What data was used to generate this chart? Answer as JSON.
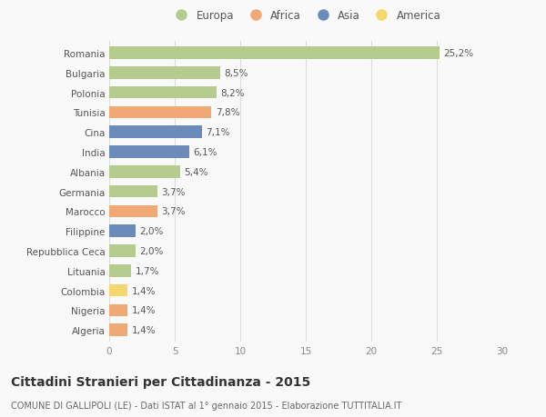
{
  "categories": [
    "Romania",
    "Bulgaria",
    "Polonia",
    "Tunisia",
    "Cina",
    "India",
    "Albania",
    "Germania",
    "Marocco",
    "Filippine",
    "Repubblica Ceca",
    "Lituania",
    "Colombia",
    "Nigeria",
    "Algeria"
  ],
  "values": [
    25.2,
    8.5,
    8.2,
    7.8,
    7.1,
    6.1,
    5.4,
    3.7,
    3.7,
    2.0,
    2.0,
    1.7,
    1.4,
    1.4,
    1.4
  ],
  "labels": [
    "25,2%",
    "8,5%",
    "8,2%",
    "7,8%",
    "7,1%",
    "6,1%",
    "5,4%",
    "3,7%",
    "3,7%",
    "2,0%",
    "2,0%",
    "1,7%",
    "1,4%",
    "1,4%",
    "1,4%"
  ],
  "continents": [
    "Europa",
    "Europa",
    "Europa",
    "Africa",
    "Asia",
    "Asia",
    "Europa",
    "Europa",
    "Africa",
    "Asia",
    "Europa",
    "Europa",
    "America",
    "Africa",
    "Africa"
  ],
  "continent_colors": {
    "Europa": "#b5cc8e",
    "Africa": "#f0a875",
    "Asia": "#6b8cba",
    "America": "#f5d76e"
  },
  "legend_order": [
    "Europa",
    "Africa",
    "Asia",
    "America"
  ],
  "title_main": "Cittadini Stranieri per Cittadinanza - 2015",
  "title_sub": "COMUNE DI GALLIPOLI (LE) - Dati ISTAT al 1° gennaio 2015 - Elaborazione TUTTITALIA.IT",
  "xlim": [
    0,
    30
  ],
  "xticks": [
    0,
    5,
    10,
    15,
    20,
    25,
    30
  ],
  "background_color": "#f9f9f9",
  "grid_color": "#dddddd",
  "bar_height": 0.62,
  "label_fontsize": 7.5,
  "tick_fontsize": 7.5,
  "ytick_fontsize": 7.5,
  "title_main_fontsize": 10,
  "title_sub_fontsize": 7
}
